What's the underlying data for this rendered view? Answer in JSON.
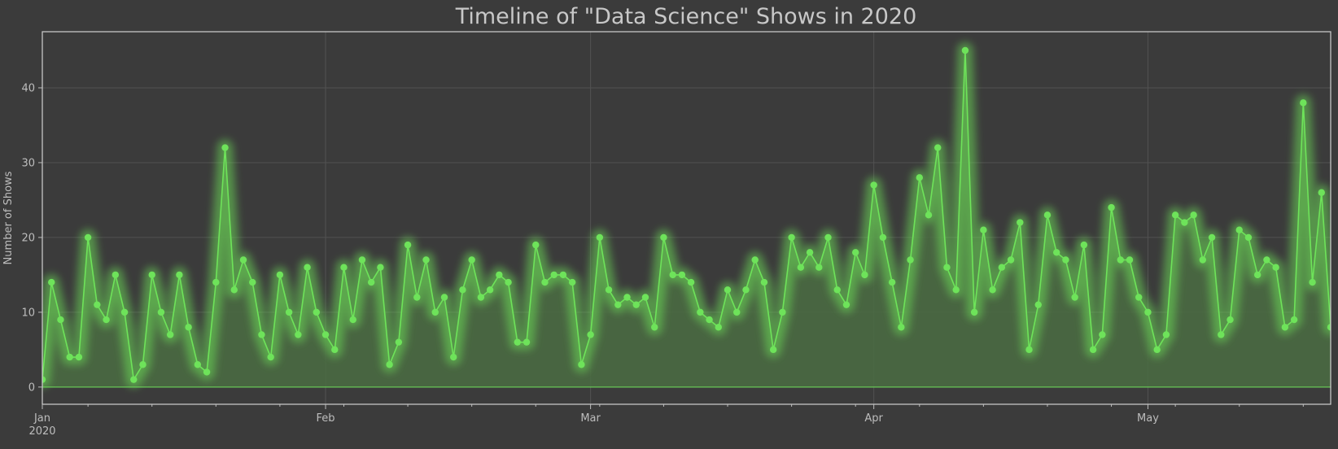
{
  "chart_data": {
    "type": "line",
    "title": "Timeline of \"Data Science\" Shows in 2020",
    "xlabel": "",
    "ylabel": "Number of Shows",
    "ylim": [
      -2.3,
      47.5
    ],
    "yticks": [
      0,
      10,
      20,
      30,
      40
    ],
    "x_start": "2020-01-01",
    "xticks": [
      {
        "date": "2020-01-01",
        "label": "Jan",
        "sublabel": "2020"
      },
      {
        "date": "2020-02-01",
        "label": "Feb",
        "sublabel": ""
      },
      {
        "date": "2020-03-01",
        "label": "Mar",
        "sublabel": ""
      },
      {
        "date": "2020-04-01",
        "label": "Apr",
        "sublabel": ""
      },
      {
        "date": "2020-05-01",
        "label": "May",
        "sublabel": ""
      }
    ],
    "grid": true,
    "colors": {
      "background": "#3b3b3b",
      "line": "#6ee35a",
      "fill": "#4a6a42",
      "frame": "#d0d0d0",
      "grid": "#525252"
    },
    "series": [
      {
        "values": [
          1,
          14,
          9,
          4,
          4,
          20,
          11,
          9,
          15,
          10,
          1,
          3,
          15,
          10,
          7,
          15,
          8,
          3,
          2,
          14,
          32,
          13,
          17,
          14,
          7,
          4,
          15,
          10,
          7,
          16,
          10,
          7,
          5,
          16,
          9,
          17,
          14,
          16,
          3,
          6,
          19,
          12,
          17,
          10,
          12,
          4,
          13,
          17,
          12,
          13,
          15,
          14,
          6,
          6,
          19,
          14,
          15,
          15,
          14,
          3,
          7,
          20,
          13,
          11,
          12,
          11,
          12,
          8,
          20,
          15,
          15,
          14,
          10,
          9,
          8,
          13,
          10,
          13,
          17,
          14,
          5,
          10,
          20,
          16,
          18,
          16,
          20,
          13,
          11,
          18,
          15,
          27,
          20,
          14,
          8,
          17,
          28,
          23,
          32,
          16,
          13,
          45,
          10,
          21,
          13,
          16,
          17,
          22,
          5,
          11,
          23,
          18,
          17,
          12,
          19,
          5,
          7,
          24,
          17,
          17,
          12,
          10,
          5,
          7,
          23,
          22,
          23,
          17,
          20,
          7,
          9,
          21,
          20,
          15,
          17,
          16,
          8,
          9,
          38,
          14,
          26,
          8
        ]
      }
    ]
  }
}
